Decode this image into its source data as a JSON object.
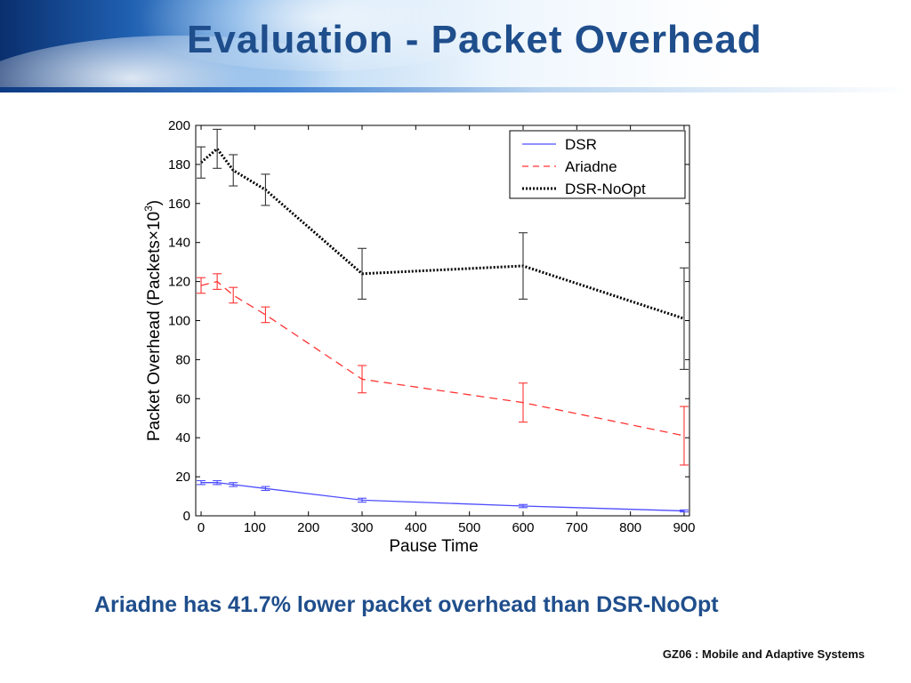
{
  "slide": {
    "title": "Evaluation - Packet Overhead",
    "caption": "Ariadne has 41.7% lower packet overhead than DSR-NoOpt",
    "footer": "GZ06 : Mobile and Adaptive Systems"
  },
  "chart_data": {
    "type": "line",
    "title": "",
    "xlabel": "Pause Time",
    "ylabel": "Packet Overhead (Packets×10",
    "ylabel_exponent": "3",
    "ylabel_close": ")",
    "xlim": [
      -10,
      910
    ],
    "ylim": [
      0,
      200
    ],
    "xticks": [
      0,
      100,
      200,
      300,
      400,
      500,
      600,
      700,
      800,
      900
    ],
    "yticks": [
      0,
      20,
      40,
      60,
      80,
      100,
      120,
      140,
      160,
      180,
      200
    ],
    "legend_position": "top-right",
    "series": [
      {
        "name": "DSR",
        "color": "#4d4dff",
        "style": "solid",
        "x": [
          0,
          30,
          60,
          120,
          300,
          600,
          900
        ],
        "y": [
          17,
          17,
          16,
          14,
          8,
          5,
          2.5
        ],
        "err": [
          1,
          1,
          1,
          1,
          1,
          0.8,
          0.5
        ]
      },
      {
        "name": "Ariadne",
        "color": "#ff3333",
        "style": "dashed",
        "x": [
          0,
          30,
          60,
          120,
          300,
          600,
          900
        ],
        "y": [
          118,
          120,
          113,
          103,
          70,
          58,
          41
        ],
        "err": [
          4,
          4,
          4,
          4,
          7,
          10,
          15
        ]
      },
      {
        "name": "DSR-NoOpt",
        "color": "#000000",
        "style": "dotted",
        "x": [
          0,
          30,
          60,
          120,
          300,
          600,
          900
        ],
        "y": [
          181,
          188,
          177,
          167,
          124,
          128,
          101
        ],
        "err": [
          8,
          10,
          8,
          8,
          13,
          17,
          26
        ]
      }
    ]
  }
}
